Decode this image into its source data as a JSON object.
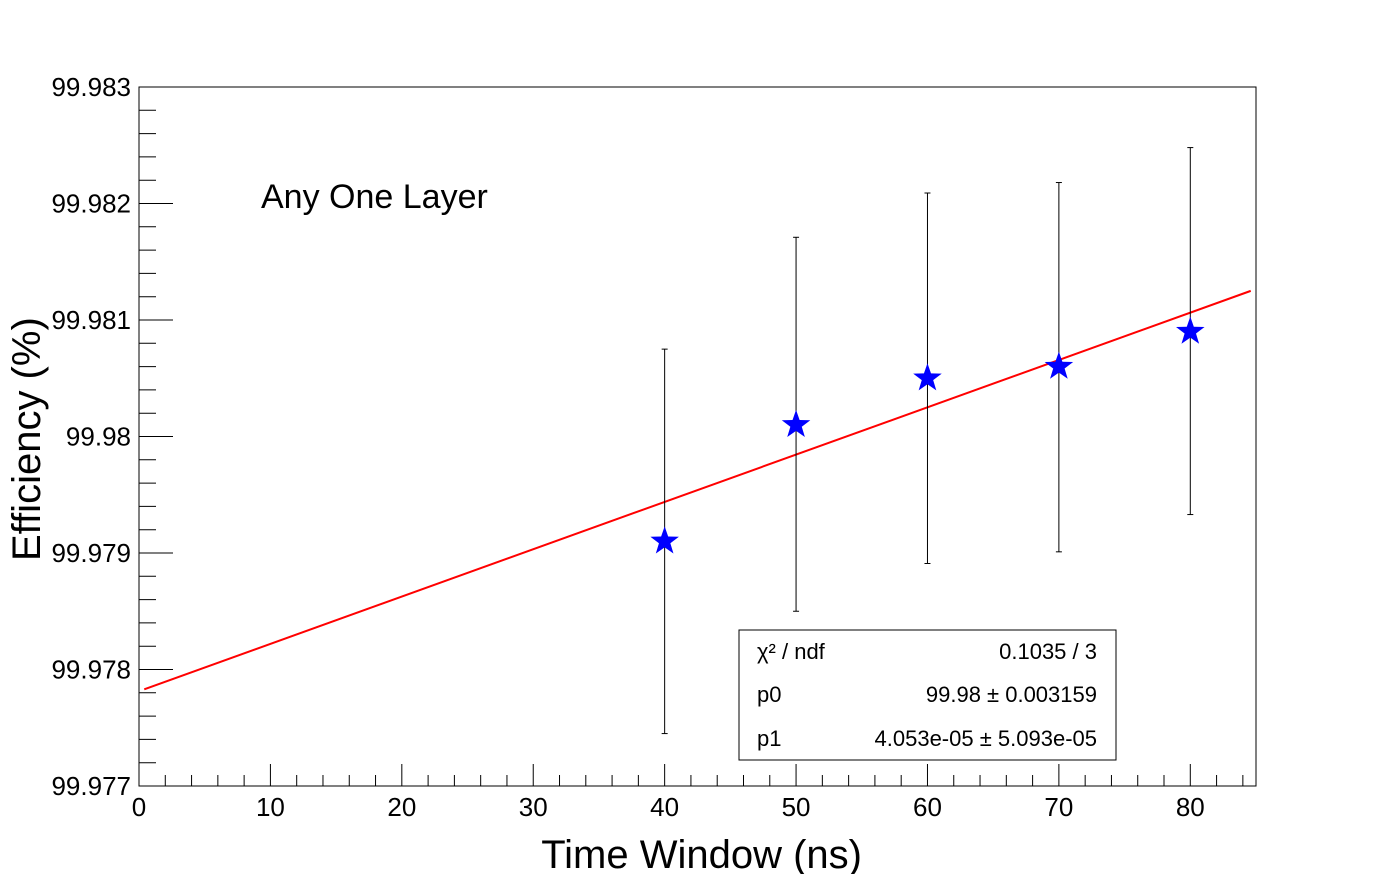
{
  "chart_data": {
    "type": "scatter",
    "title": "",
    "xlabel": "Time Window (ns)",
    "ylabel": "Efficiency (%)",
    "xlim": [
      0,
      85
    ],
    "ylim": [
      99.977,
      99.983
    ],
    "x_ticks": [
      0,
      10,
      20,
      30,
      40,
      50,
      60,
      70,
      80
    ],
    "x_tick_labels": [
      "0",
      "10",
      "20",
      "30",
      "40",
      "50",
      "60",
      "70",
      "80"
    ],
    "y_ticks": [
      99.977,
      99.978,
      99.979,
      99.98,
      99.981,
      99.982,
      99.983
    ],
    "y_tick_labels": [
      "99.977",
      "99.978",
      "99.979",
      "99.98",
      "99.981",
      "99.982",
      "99.983"
    ],
    "grid": false,
    "annotation": "Any One Layer",
    "points": [
      {
        "x": 40,
        "y": 99.9791,
        "err_low": 99.97745,
        "err_high": 99.98075
      },
      {
        "x": 50,
        "y": 99.9801,
        "err_low": 99.9785,
        "err_high": 99.98171
      },
      {
        "x": 60,
        "y": 99.9805,
        "err_low": 99.97891,
        "err_high": 99.98209
      },
      {
        "x": 70,
        "y": 99.9806,
        "err_low": 99.97901,
        "err_high": 99.98218
      },
      {
        "x": 80,
        "y": 99.9809,
        "err_low": 99.97933,
        "err_high": 99.98248
      }
    ],
    "marker_color": "#0000ff",
    "fit": {
      "color": "#ff0000",
      "x_range": [
        0.4,
        84.6
      ],
      "y_range": [
        99.97783,
        99.98125
      ]
    },
    "stats_box": {
      "rows": [
        {
          "label": "χ² / ndf",
          "value": "0.1035 / 3"
        },
        {
          "label": "p0",
          "value": "99.98 ± 0.003159"
        },
        {
          "label": "p1",
          "value": "4.053e-05 ± 5.093e-05"
        }
      ]
    }
  }
}
